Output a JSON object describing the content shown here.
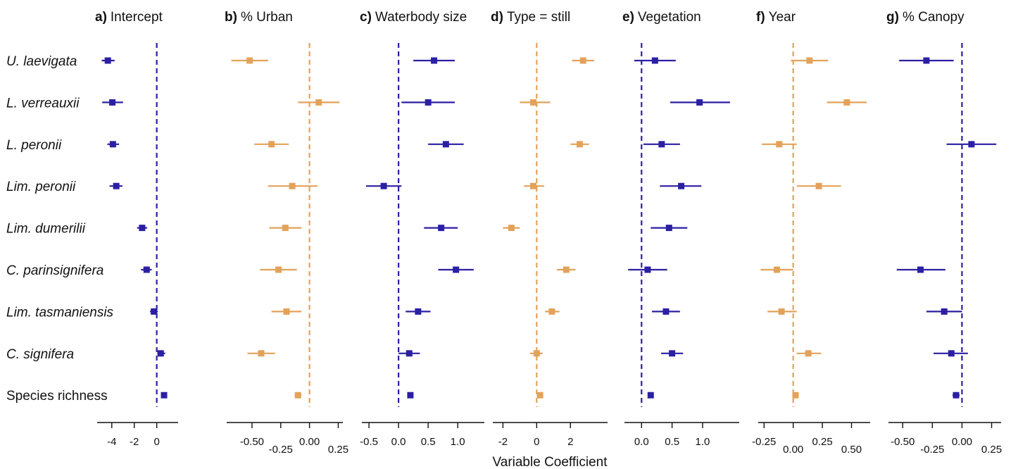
{
  "chart_data": {
    "type": "scatter",
    "subtype": "coefficient-forest-plot",
    "xlabel": "Variable Coefficient",
    "colors": {
      "blue": "#2b1fa3",
      "orange": "#e3a25a"
    },
    "rows": [
      "U. laevigata",
      "L. verreauxii",
      "L. peronii",
      "Lim. peronii",
      "Lim. dumerilii",
      "C. parinsignifera",
      "Lim. tasmaniensis",
      "C. signifera",
      "Species richness"
    ],
    "row_italic": [
      true,
      true,
      true,
      true,
      true,
      true,
      true,
      true,
      false
    ],
    "panels": [
      {
        "letter": "a)",
        "title": "Intercept",
        "color": "blue",
        "xlim": [
          -5.3,
          1.9
        ],
        "ticks": [
          {
            "value": -4,
            "label": "-4",
            "level": 0
          },
          {
            "value": -2,
            "label": "-2",
            "level": 0
          },
          {
            "value": 0,
            "label": "0",
            "level": 0
          }
        ],
        "estimates": [
          {
            "est": -4.35,
            "lo": -4.9,
            "hi": -3.75
          },
          {
            "est": -3.95,
            "lo": -4.85,
            "hi": -3.0
          },
          {
            "est": -3.9,
            "lo": -4.4,
            "hi": -3.35
          },
          {
            "est": -3.6,
            "lo": -4.2,
            "hi": -3.05
          },
          {
            "est": -1.3,
            "lo": -1.75,
            "hi": -0.85
          },
          {
            "est": -0.9,
            "lo": -1.4,
            "hi": -0.45
          },
          {
            "est": -0.25,
            "lo": -0.6,
            "hi": 0.1
          },
          {
            "est": 0.35,
            "lo": 0.05,
            "hi": 0.75
          },
          {
            "est": 0.65,
            "lo": 0.55,
            "hi": 0.75
          }
        ]
      },
      {
        "letter": "b)",
        "title": "% Urban",
        "color": "orange",
        "xlim": [
          -0.72,
          0.29
        ],
        "ticks": [
          {
            "value": -0.5,
            "label": "-0.50",
            "level": 0
          },
          {
            "value": -0.25,
            "label": "-0.25",
            "level": 1
          },
          {
            "value": 0,
            "label": "0.00",
            "level": 0
          },
          {
            "value": 0.25,
            "label": "0.25",
            "level": 1
          }
        ],
        "estimates": [
          {
            "est": -0.52,
            "lo": -0.68,
            "hi": -0.36
          },
          {
            "est": 0.08,
            "lo": -0.1,
            "hi": 0.26
          },
          {
            "est": -0.33,
            "lo": -0.48,
            "hi": -0.18
          },
          {
            "est": -0.15,
            "lo": -0.36,
            "hi": 0.07
          },
          {
            "est": -0.21,
            "lo": -0.35,
            "hi": -0.07
          },
          {
            "est": -0.27,
            "lo": -0.43,
            "hi": -0.11
          },
          {
            "est": -0.2,
            "lo": -0.33,
            "hi": -0.07
          },
          {
            "est": -0.42,
            "lo": -0.54,
            "hi": -0.3
          },
          {
            "est": -0.1,
            "lo": -0.13,
            "hi": -0.07
          }
        ]
      },
      {
        "letter": "c)",
        "title": "Waterbody size",
        "color": "blue",
        "xlim": [
          -0.62,
          1.45
        ],
        "ticks": [
          {
            "value": -0.5,
            "label": "-0.5",
            "level": 0
          },
          {
            "value": 0,
            "label": "0.0",
            "level": 0
          },
          {
            "value": 0.5,
            "label": "0.5",
            "level": 0
          },
          {
            "value": 1,
            "label": "1.0",
            "level": 0
          }
        ],
        "estimates": [
          {
            "est": 0.6,
            "lo": 0.25,
            "hi": 0.95
          },
          {
            "est": 0.5,
            "lo": 0.05,
            "hi": 0.95
          },
          {
            "est": 0.8,
            "lo": 0.5,
            "hi": 1.1
          },
          {
            "est": -0.25,
            "lo": -0.55,
            "hi": 0.05
          },
          {
            "est": 0.72,
            "lo": 0.43,
            "hi": 1.0
          },
          {
            "est": 0.97,
            "lo": 0.67,
            "hi": 1.27
          },
          {
            "est": 0.33,
            "lo": 0.12,
            "hi": 0.54
          },
          {
            "est": 0.18,
            "lo": 0.0,
            "hi": 0.36
          },
          {
            "est": 0.2,
            "lo": 0.15,
            "hi": 0.25
          }
        ]
      },
      {
        "letter": "d)",
        "title": "Type = still",
        "color": "orange",
        "xlim": [
          -2.6,
          4.2
        ],
        "ticks": [
          {
            "value": -2,
            "label": "-2",
            "level": 0
          },
          {
            "value": 0,
            "label": "0",
            "level": 0
          },
          {
            "value": 2,
            "label": "2",
            "level": 0
          }
        ],
        "estimates": [
          {
            "est": 2.75,
            "lo": 2.1,
            "hi": 3.4
          },
          {
            "est": -0.2,
            "lo": -1.0,
            "hi": 0.8
          },
          {
            "est": 2.55,
            "lo": 2.0,
            "hi": 3.1
          },
          {
            "est": -0.2,
            "lo": -0.75,
            "hi": 0.45
          },
          {
            "est": -1.5,
            "lo": -2.0,
            "hi": -1.0
          },
          {
            "est": 1.75,
            "lo": 1.2,
            "hi": 2.3
          },
          {
            "est": 0.9,
            "lo": 0.5,
            "hi": 1.35
          },
          {
            "est": 0.0,
            "lo": -0.4,
            "hi": 0.35
          },
          {
            "est": 0.2,
            "lo": 0.1,
            "hi": 0.3
          }
        ]
      },
      {
        "letter": "e)",
        "title": "Vegetation",
        "color": "blue",
        "xlim": [
          -0.28,
          1.6
        ],
        "ticks": [
          {
            "value": 0,
            "label": "0.0",
            "level": 0
          },
          {
            "value": 0.5,
            "label": "0.5",
            "level": 0
          },
          {
            "value": 1,
            "label": "1.0",
            "level": 0
          }
        ],
        "estimates": [
          {
            "est": 0.22,
            "lo": -0.12,
            "hi": 0.56
          },
          {
            "est": 0.95,
            "lo": 0.47,
            "hi": 1.45
          },
          {
            "est": 0.33,
            "lo": 0.03,
            "hi": 0.63
          },
          {
            "est": 0.65,
            "lo": 0.3,
            "hi": 0.98
          },
          {
            "est": 0.45,
            "lo": 0.15,
            "hi": 0.75
          },
          {
            "est": 0.1,
            "lo": -0.22,
            "hi": 0.42
          },
          {
            "est": 0.4,
            "lo": 0.17,
            "hi": 0.63
          },
          {
            "est": 0.5,
            "lo": 0.32,
            "hi": 0.68
          },
          {
            "est": 0.15,
            "lo": 0.11,
            "hi": 0.19
          }
        ]
      },
      {
        "letter": "f)",
        "title": "Year",
        "color": "orange",
        "xlim": [
          -0.3,
          0.66
        ],
        "ticks": [
          {
            "value": -0.25,
            "label": "-0.25",
            "level": 0
          },
          {
            "value": 0,
            "label": "0.00",
            "level": 1
          },
          {
            "value": 0.25,
            "label": "0.25",
            "level": 0
          },
          {
            "value": 0.5,
            "label": "0.50",
            "level": 1
          }
        ],
        "estimates": [
          {
            "est": 0.14,
            "lo": -0.02,
            "hi": 0.3
          },
          {
            "est": 0.46,
            "lo": 0.29,
            "hi": 0.63
          },
          {
            "est": -0.12,
            "lo": -0.27,
            "hi": 0.03
          },
          {
            "est": 0.22,
            "lo": 0.03,
            "hi": 0.41
          },
          null,
          {
            "est": -0.14,
            "lo": -0.28,
            "hi": 0.0
          },
          {
            "est": -0.1,
            "lo": -0.22,
            "hi": 0.03
          },
          {
            "est": 0.13,
            "lo": 0.03,
            "hi": 0.24
          },
          {
            "est": 0.02,
            "lo": 0.0,
            "hi": 0.04
          }
        ]
      },
      {
        "letter": "g)",
        "title": "% Canopy",
        "color": "blue",
        "xlim": [
          -0.62,
          0.33
        ],
        "ticks": [
          {
            "value": -0.5,
            "label": "-0.50",
            "level": 0
          },
          {
            "value": -0.25,
            "label": "-0.25",
            "level": 1
          },
          {
            "value": 0,
            "label": "0.00",
            "level": 0
          },
          {
            "value": 0.25,
            "label": "0.25",
            "level": 1
          }
        ],
        "estimates": [
          {
            "est": -0.3,
            "lo": -0.53,
            "hi": -0.07
          },
          null,
          {
            "est": 0.08,
            "lo": -0.13,
            "hi": 0.29
          },
          null,
          null,
          {
            "est": -0.35,
            "lo": -0.55,
            "hi": -0.14
          },
          {
            "est": -0.15,
            "lo": -0.3,
            "hi": 0.0
          },
          {
            "est": -0.09,
            "lo": -0.24,
            "hi": 0.05
          },
          {
            "est": -0.05,
            "lo": -0.08,
            "hi": -0.02
          }
        ]
      }
    ]
  }
}
